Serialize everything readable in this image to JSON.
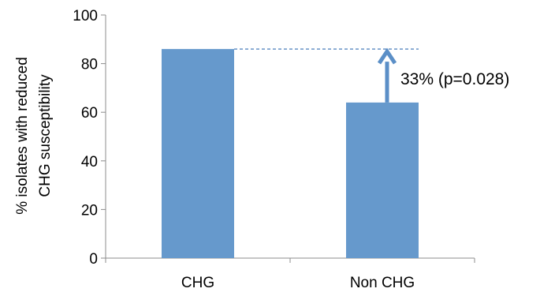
{
  "chart_data": {
    "type": "bar",
    "categories": [
      "CHG",
      "Non CHG"
    ],
    "values": [
      86,
      64
    ],
    "ylabel_lines": [
      "% isolates with reduced",
      "CHG susceptibility"
    ],
    "xlabel": "",
    "ylim": [
      0,
      100
    ],
    "yticks": [
      "0",
      "20",
      "40",
      "60",
      "80",
      "100"
    ],
    "grid": false,
    "legend": "none",
    "bar_color": "#6699CC",
    "annotation": {
      "text": "33% (p=0.028)",
      "from_value": 64,
      "to_value": 86
    }
  }
}
